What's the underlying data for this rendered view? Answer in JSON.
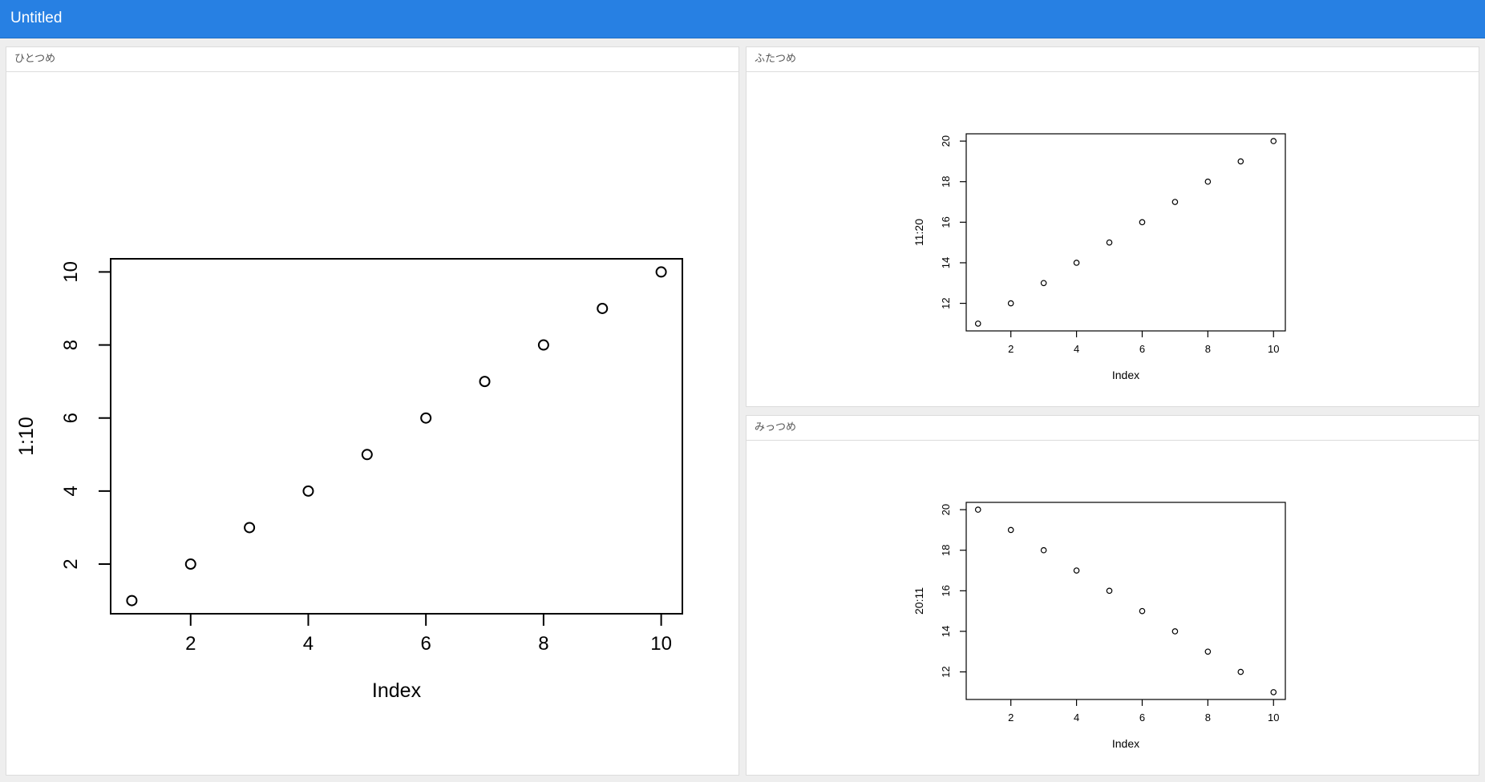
{
  "app": {
    "title": "Untitled",
    "brand_color": "#2780e3"
  },
  "panels": [
    {
      "id": "panel-1",
      "title": "ひとつめ",
      "chart_data": {
        "type": "scatter",
        "x": [
          1,
          2,
          3,
          4,
          5,
          6,
          7,
          8,
          9,
          10
        ],
        "y": [
          1,
          2,
          3,
          4,
          5,
          6,
          7,
          8,
          9,
          10
        ],
        "xlabel": "Index",
        "ylabel": "1:10",
        "xlim": [
          0.64,
          10.36
        ],
        "ylim": [
          0.64,
          10.36
        ],
        "xticks": [
          "2",
          "4",
          "6",
          "8",
          "10"
        ],
        "xtick_values": [
          2,
          4,
          6,
          8,
          10
        ],
        "yticks": [
          "2",
          "4",
          "6",
          "8",
          "10"
        ],
        "ytick_values": [
          2,
          4,
          6,
          8,
          10
        ],
        "grid": false
      }
    },
    {
      "id": "panel-2",
      "title": "ふたつめ",
      "chart_data": {
        "type": "scatter",
        "x": [
          1,
          2,
          3,
          4,
          5,
          6,
          7,
          8,
          9,
          10
        ],
        "y": [
          11,
          12,
          13,
          14,
          15,
          16,
          17,
          18,
          19,
          20
        ],
        "xlabel": "Index",
        "ylabel": "11:20",
        "xlim": [
          0.64,
          10.36
        ],
        "ylim": [
          10.64,
          20.36
        ],
        "xticks": [
          "2",
          "4",
          "6",
          "8",
          "10"
        ],
        "xtick_values": [
          2,
          4,
          6,
          8,
          10
        ],
        "yticks": [
          "12",
          "14",
          "16",
          "18",
          "20"
        ],
        "ytick_values": [
          12,
          14,
          16,
          18,
          20
        ],
        "grid": false
      }
    },
    {
      "id": "panel-3",
      "title": "みっつめ",
      "chart_data": {
        "type": "scatter",
        "x": [
          1,
          2,
          3,
          4,
          5,
          6,
          7,
          8,
          9,
          10
        ],
        "y": [
          20,
          19,
          18,
          17,
          16,
          15,
          14,
          13,
          12,
          11
        ],
        "xlabel": "Index",
        "ylabel": "20:11",
        "xlim": [
          0.64,
          10.36
        ],
        "ylim": [
          10.64,
          20.36
        ],
        "xticks": [
          "2",
          "4",
          "6",
          "8",
          "10"
        ],
        "xtick_values": [
          2,
          4,
          6,
          8,
          10
        ],
        "yticks": [
          "12",
          "14",
          "16",
          "18",
          "20"
        ],
        "ytick_values": [
          12,
          14,
          16,
          18,
          20
        ],
        "grid": false
      }
    }
  ]
}
